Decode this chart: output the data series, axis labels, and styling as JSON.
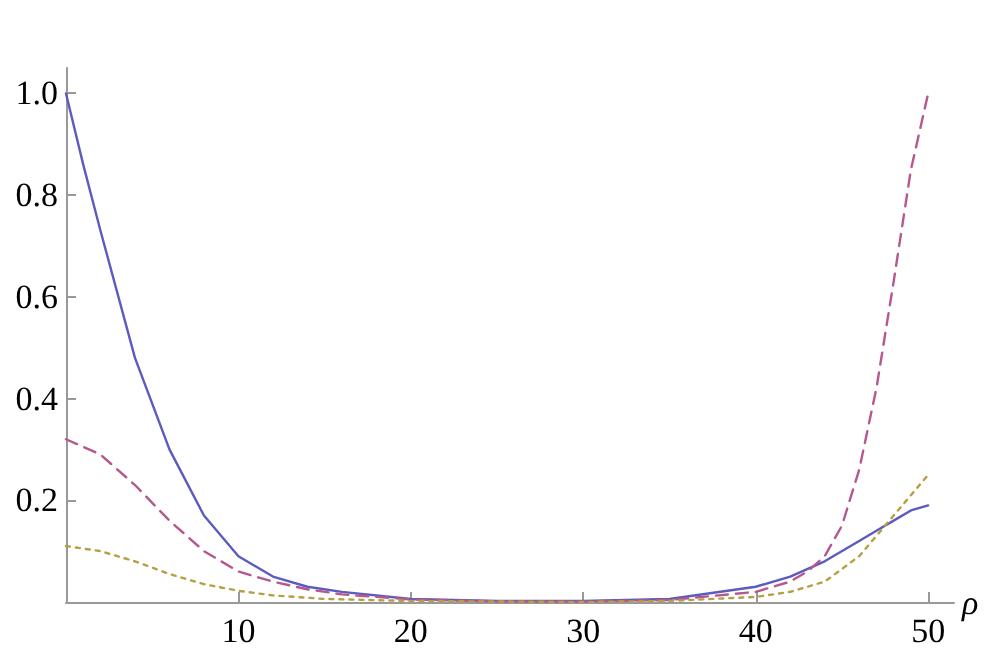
{
  "chart_data": {
    "type": "line",
    "xlabel": "ρ",
    "xlim": [
      0,
      51.5
    ],
    "xticks": [
      10,
      20,
      30,
      40,
      50
    ],
    "ylim": [
      0,
      1.05
    ],
    "yticks": [
      0.2,
      0.4,
      0.6,
      {
        "value": 1.0,
        "label": "1.0"
      },
      0.8
    ],
    "grid": false,
    "marker": "none",
    "series": [
      {
        "color": "#5b5bc0",
        "line_style": "solid",
        "x": [
          0,
          1,
          2,
          4,
          6,
          8,
          10,
          12,
          14,
          16,
          20,
          25,
          30,
          35,
          40,
          42,
          44,
          46,
          47,
          48,
          49,
          50
        ],
        "values": [
          1.0,
          0.86,
          0.73,
          0.48,
          0.3,
          0.17,
          0.09,
          0.05,
          0.03,
          0.02,
          0.006,
          0.002,
          0.002,
          0.006,
          0.03,
          0.05,
          0.08,
          0.12,
          0.14,
          0.16,
          0.18,
          0.19
        ]
      },
      {
        "color": "#b5588f",
        "line_style": "dashed",
        "x": [
          0,
          2,
          4,
          6,
          8,
          10,
          12,
          14,
          16,
          20,
          25,
          30,
          35,
          40,
          42,
          43,
          44,
          45,
          46,
          47,
          48,
          49,
          50
        ],
        "values": [
          0.32,
          0.29,
          0.23,
          0.16,
          0.1,
          0.06,
          0.04,
          0.025,
          0.015,
          0.005,
          0.001,
          0.001,
          0.004,
          0.02,
          0.04,
          0.06,
          0.09,
          0.15,
          0.26,
          0.42,
          0.63,
          0.85,
          1.0
        ]
      },
      {
        "color": "#b5a042",
        "line_style": "dotted",
        "x": [
          0,
          2,
          4,
          6,
          8,
          10,
          12,
          15,
          20,
          30,
          35,
          40,
          42,
          44,
          46,
          47,
          48,
          49,
          50
        ],
        "values": [
          0.11,
          0.1,
          0.08,
          0.055,
          0.035,
          0.022,
          0.013,
          0.006,
          0.002,
          0.0,
          0.002,
          0.01,
          0.02,
          0.04,
          0.09,
          0.13,
          0.17,
          0.21,
          0.25
        ]
      }
    ]
  }
}
